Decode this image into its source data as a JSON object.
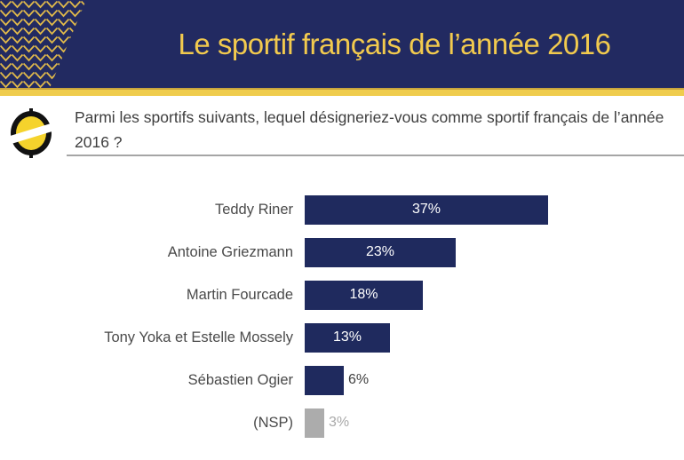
{
  "header": {
    "title": "Le sportif français de l’année 2016"
  },
  "question": {
    "text": "Parmi les sportifs suivants, lequel désigneriez-vous comme sportif français de l’année 2016 ?"
  },
  "colors": {
    "header_navy": "#222A61",
    "gold": "#EFCC4D",
    "gold_dark": "#C9A53E",
    "title_gold": "#F2CA4E",
    "bar_navy": "#1F2A5E",
    "nsp_gray": "#ACACAC",
    "category_label_gray": "#4A4A4A",
    "question_text_gray": "#3E3E3E",
    "rule_gray": "#A5A5A5",
    "logo_yellow": "#F5D32C",
    "logo_black": "#121212"
  },
  "chart_data": {
    "type": "bar",
    "orientation": "horizontal",
    "title": "",
    "xlabel": "",
    "ylabel": "",
    "unit": "%",
    "xlim": [
      0,
      40
    ],
    "grid": false,
    "legend": null,
    "categories": [
      "Teddy Riner",
      "Antoine Griezmann",
      "Martin Fourcade",
      "Tony Yoka et Estelle Mossely",
      "Sébastien Ogier",
      "(NSP)"
    ],
    "values": [
      37,
      23,
      18,
      13,
      6,
      3
    ],
    "value_labels": [
      "37%",
      "23%",
      "18%",
      "13%",
      "6%",
      "3%"
    ],
    "bar_colors": [
      "#1F2A5E",
      "#1F2A5E",
      "#1F2A5E",
      "#1F2A5E",
      "#1F2A5E",
      "#ACACAC"
    ],
    "value_label_positions": [
      "inside",
      "inside",
      "inside",
      "inside",
      "outside",
      "outside"
    ],
    "value_label_colors": [
      "#FFFFFF",
      "#FFFFFF",
      "#FFFFFF",
      "#FFFFFF",
      "#404040",
      "#A9A9A9"
    ]
  }
}
